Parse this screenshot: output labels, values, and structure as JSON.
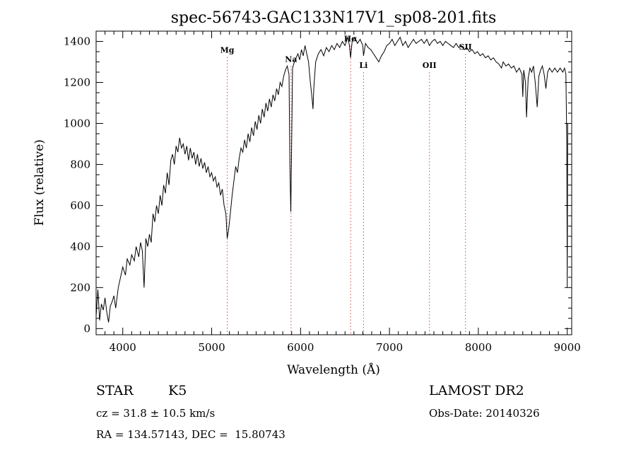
{
  "chart_data": {
    "type": "line",
    "title": "spec-56743-GAC133N17V1_sp08-201.fits",
    "xlabel": "Wavelength (Å)",
    "ylabel": "Flux (relative)",
    "xlim": [
      3700,
      9050
    ],
    "ylim": [
      -30,
      1450
    ],
    "xticks": [
      4000,
      5000,
      6000,
      7000,
      8000,
      9000
    ],
    "xtick_labels": [
      "4000",
      "5000",
      "6000",
      "7000",
      "8000",
      "9000"
    ],
    "yticks": [
      0,
      200,
      400,
      600,
      800,
      1000,
      1200,
      1400
    ],
    "ytick_labels": [
      "0",
      "200",
      "400",
      "600",
      "800",
      "1000",
      "1200",
      "1400"
    ],
    "grid": false,
    "line_color": "#000000",
    "annotation_color": "#cc4444",
    "spectral_lines": [
      {
        "label": "Mg",
        "x": 5175,
        "label_y": 1345
      },
      {
        "label": "Na",
        "x": 5893,
        "label_y": 1300
      },
      {
        "label": "Hα",
        "x": 6563,
        "label_y": 1400
      },
      {
        "label": "Li",
        "x": 6708,
        "label_y": 1270
      },
      {
        "label": "OII",
        "x": 7450,
        "label_y": 1270
      },
      {
        "label": "SII",
        "x": 7855,
        "label_y": 1360
      }
    ],
    "series": [
      {
        "values": [
          [
            3700,
            60
          ],
          [
            3720,
            190
          ],
          [
            3740,
            40
          ],
          [
            3760,
            120
          ],
          [
            3780,
            90
          ],
          [
            3800,
            150
          ],
          [
            3820,
            80
          ],
          [
            3840,
            30
          ],
          [
            3860,
            110
          ],
          [
            3880,
            130
          ],
          [
            3900,
            160
          ],
          [
            3920,
            100
          ],
          [
            3950,
            200
          ],
          [
            3980,
            260
          ],
          [
            4000,
            300
          ],
          [
            4030,
            260
          ],
          [
            4050,
            340
          ],
          [
            4080,
            310
          ],
          [
            4100,
            360
          ],
          [
            4130,
            330
          ],
          [
            4150,
            400
          ],
          [
            4180,
            350
          ],
          [
            4200,
            420
          ],
          [
            4220,
            380
          ],
          [
            4240,
            200
          ],
          [
            4260,
            440
          ],
          [
            4280,
            400
          ],
          [
            4300,
            460
          ],
          [
            4320,
            420
          ],
          [
            4340,
            560
          ],
          [
            4360,
            520
          ],
          [
            4380,
            600
          ],
          [
            4400,
            560
          ],
          [
            4420,
            650
          ],
          [
            4440,
            600
          ],
          [
            4460,
            700
          ],
          [
            4480,
            660
          ],
          [
            4500,
            760
          ],
          [
            4520,
            700
          ],
          [
            4540,
            820
          ],
          [
            4560,
            850
          ],
          [
            4580,
            800
          ],
          [
            4600,
            890
          ],
          [
            4620,
            860
          ],
          [
            4640,
            930
          ],
          [
            4660,
            880
          ],
          [
            4680,
            900
          ],
          [
            4700,
            850
          ],
          [
            4720,
            890
          ],
          [
            4740,
            820
          ],
          [
            4760,
            880
          ],
          [
            4780,
            830
          ],
          [
            4800,
            860
          ],
          [
            4820,
            800
          ],
          [
            4840,
            850
          ],
          [
            4860,
            790
          ],
          [
            4880,
            830
          ],
          [
            4900,
            780
          ],
          [
            4920,
            810
          ],
          [
            4940,
            760
          ],
          [
            4960,
            790
          ],
          [
            4980,
            740
          ],
          [
            5000,
            760
          ],
          [
            5020,
            720
          ],
          [
            5040,
            740
          ],
          [
            5060,
            690
          ],
          [
            5080,
            710
          ],
          [
            5100,
            650
          ],
          [
            5120,
            680
          ],
          [
            5140,
            600
          ],
          [
            5160,
            560
          ],
          [
            5175,
            440
          ],
          [
            5190,
            480
          ],
          [
            5210,
            560
          ],
          [
            5230,
            650
          ],
          [
            5250,
            720
          ],
          [
            5270,
            790
          ],
          [
            5290,
            760
          ],
          [
            5310,
            830
          ],
          [
            5330,
            880
          ],
          [
            5350,
            860
          ],
          [
            5370,
            920
          ],
          [
            5390,
            880
          ],
          [
            5410,
            950
          ],
          [
            5430,
            910
          ],
          [
            5450,
            980
          ],
          [
            5470,
            940
          ],
          [
            5490,
            1010
          ],
          [
            5510,
            970
          ],
          [
            5530,
            1040
          ],
          [
            5550,
            1000
          ],
          [
            5570,
            1070
          ],
          [
            5590,
            1030
          ],
          [
            5610,
            1100
          ],
          [
            5630,
            1060
          ],
          [
            5650,
            1120
          ],
          [
            5670,
            1080
          ],
          [
            5690,
            1140
          ],
          [
            5710,
            1110
          ],
          [
            5730,
            1170
          ],
          [
            5750,
            1140
          ],
          [
            5770,
            1200
          ],
          [
            5790,
            1180
          ],
          [
            5810,
            1230
          ],
          [
            5830,
            1260
          ],
          [
            5850,
            1280
          ],
          [
            5870,
            1240
          ],
          [
            5880,
            800
          ],
          [
            5890,
            570
          ],
          [
            5900,
            900
          ],
          [
            5910,
            1270
          ],
          [
            5930,
            1300
          ],
          [
            5950,
            1320
          ],
          [
            5970,
            1340
          ],
          [
            5990,
            1310
          ],
          [
            6010,
            1360
          ],
          [
            6030,
            1330
          ],
          [
            6050,
            1380
          ],
          [
            6070,
            1340
          ],
          [
            6090,
            1300
          ],
          [
            6110,
            1200
          ],
          [
            6130,
            1120
          ],
          [
            6140,
            1070
          ],
          [
            6150,
            1180
          ],
          [
            6170,
            1300
          ],
          [
            6200,
            1340
          ],
          [
            6230,
            1360
          ],
          [
            6260,
            1330
          ],
          [
            6290,
            1370
          ],
          [
            6320,
            1350
          ],
          [
            6350,
            1380
          ],
          [
            6380,
            1360
          ],
          [
            6410,
            1390
          ],
          [
            6440,
            1370
          ],
          [
            6470,
            1400
          ],
          [
            6500,
            1380
          ],
          [
            6530,
            1420
          ],
          [
            6550,
            1380
          ],
          [
            6563,
            1320
          ],
          [
            6580,
            1400
          ],
          [
            6610,
            1420
          ],
          [
            6640,
            1390
          ],
          [
            6670,
            1410
          ],
          [
            6700,
            1380
          ],
          [
            6708,
            1330
          ],
          [
            6730,
            1390
          ],
          [
            6760,
            1370
          ],
          [
            6790,
            1360
          ],
          [
            6820,
            1340
          ],
          [
            6850,
            1320
          ],
          [
            6880,
            1300
          ],
          [
            6910,
            1330
          ],
          [
            6940,
            1350
          ],
          [
            6970,
            1380
          ],
          [
            7000,
            1390
          ],
          [
            7030,
            1410
          ],
          [
            7060,
            1380
          ],
          [
            7090,
            1400
          ],
          [
            7120,
            1420
          ],
          [
            7150,
            1380
          ],
          [
            7180,
            1400
          ],
          [
            7210,
            1370
          ],
          [
            7240,
            1390
          ],
          [
            7270,
            1410
          ],
          [
            7300,
            1390
          ],
          [
            7330,
            1400
          ],
          [
            7360,
            1410
          ],
          [
            7390,
            1390
          ],
          [
            7420,
            1410
          ],
          [
            7450,
            1380
          ],
          [
            7480,
            1400
          ],
          [
            7510,
            1410
          ],
          [
            7540,
            1390
          ],
          [
            7570,
            1400
          ],
          [
            7600,
            1380
          ],
          [
            7630,
            1400
          ],
          [
            7660,
            1390
          ],
          [
            7690,
            1380
          ],
          [
            7720,
            1370
          ],
          [
            7750,
            1390
          ],
          [
            7780,
            1370
          ],
          [
            7810,
            1380
          ],
          [
            7840,
            1360
          ],
          [
            7870,
            1370
          ],
          [
            7900,
            1350
          ],
          [
            7930,
            1360
          ],
          [
            7960,
            1340
          ],
          [
            7990,
            1350
          ],
          [
            8020,
            1330
          ],
          [
            8050,
            1340
          ],
          [
            8080,
            1320
          ],
          [
            8110,
            1330
          ],
          [
            8140,
            1310
          ],
          [
            8170,
            1320
          ],
          [
            8200,
            1300
          ],
          [
            8230,
            1290
          ],
          [
            8260,
            1270
          ],
          [
            8280,
            1300
          ],
          [
            8310,
            1280
          ],
          [
            8340,
            1290
          ],
          [
            8370,
            1270
          ],
          [
            8400,
            1280
          ],
          [
            8430,
            1250
          ],
          [
            8460,
            1270
          ],
          [
            8490,
            1240
          ],
          [
            8500,
            1130
          ],
          [
            8510,
            1260
          ],
          [
            8530,
            1200
          ],
          [
            8542,
            1030
          ],
          [
            8560,
            1220
          ],
          [
            8580,
            1270
          ],
          [
            8600,
            1250
          ],
          [
            8620,
            1280
          ],
          [
            8640,
            1200
          ],
          [
            8662,
            1080
          ],
          [
            8680,
            1230
          ],
          [
            8700,
            1260
          ],
          [
            8720,
            1280
          ],
          [
            8740,
            1240
          ],
          [
            8760,
            1170
          ],
          [
            8780,
            1250
          ],
          [
            8800,
            1270
          ],
          [
            8830,
            1250
          ],
          [
            8860,
            1270
          ],
          [
            8890,
            1250
          ],
          [
            8920,
            1270
          ],
          [
            8950,
            1250
          ],
          [
            8970,
            1270
          ],
          [
            8985,
            1240
          ],
          [
            8995,
            900
          ],
          [
            9000,
            200
          ],
          [
            9005,
            1000
          ]
        ]
      }
    ]
  },
  "info": {
    "object_class": "STAR",
    "subclass": "K5",
    "survey": "LAMOST DR2",
    "cz": "cz = 31.8 ± 10.5 km/s",
    "obs_date": "Obs-Date: 20140326",
    "coords": "RA = 134.57143, DEC =  15.80743"
  }
}
